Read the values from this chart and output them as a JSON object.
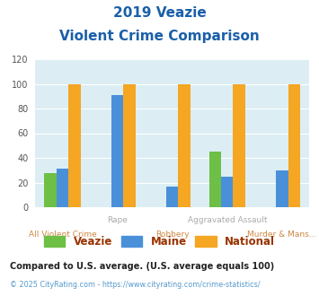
{
  "title_line1": "2019 Veazie",
  "title_line2": "Violent Crime Comparison",
  "series": {
    "Veazie": [
      28,
      0,
      0,
      45,
      0
    ],
    "Maine": [
      31,
      91,
      17,
      25,
      30
    ],
    "National": [
      100,
      100,
      100,
      100,
      100
    ]
  },
  "colors": {
    "Veazie": "#6dbf45",
    "Maine": "#4a90d9",
    "National": "#f5a623"
  },
  "top_labels": [
    "",
    "Rape",
    "",
    "Aggravated Assault",
    ""
  ],
  "bottom_labels": [
    "All Violent Crime",
    "",
    "Robbery",
    "",
    "Murder & Mans..."
  ],
  "ylim": [
    0,
    120
  ],
  "yticks": [
    0,
    20,
    40,
    60,
    80,
    100,
    120
  ],
  "bg_color": "#dceef3",
  "title_color": "#1a5fa8",
  "xlabel_top_color": "#aaaaaa",
  "xlabel_bottom_color": "#cc8844",
  "footnote1": "Compared to U.S. average. (U.S. average equals 100)",
  "footnote2": "© 2025 CityRating.com - https://www.cityrating.com/crime-statistics/",
  "footnote1_color": "#222222",
  "footnote2_color": "#5599cc",
  "legend_label_color": "#993300"
}
